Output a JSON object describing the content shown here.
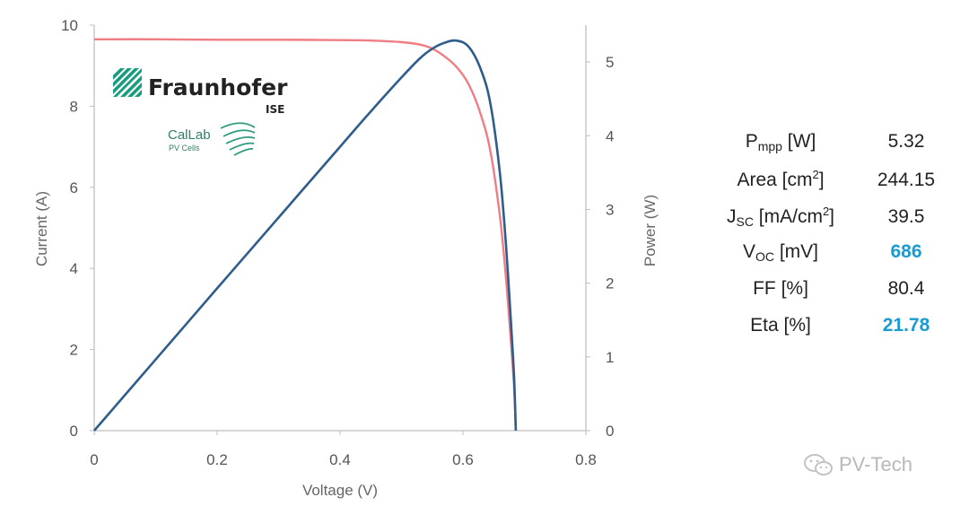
{
  "chart_data": {
    "type": "line",
    "xlabel": "Voltage (V)",
    "ylabel": "Current (A)",
    "y2label": "Power (W)",
    "xlim": [
      0,
      0.8
    ],
    "ylim": [
      0,
      10
    ],
    "y2lim": [
      0,
      5.5
    ],
    "x_ticks": [
      "0",
      "0.2",
      "0.4",
      "0.6",
      "0.8"
    ],
    "y_ticks": [
      "0",
      "2",
      "4",
      "6",
      "8",
      "10"
    ],
    "y2_ticks": [
      "0",
      "1",
      "2",
      "3",
      "4",
      "5"
    ],
    "grid": false,
    "legend": "none",
    "series": [
      {
        "axis": "left",
        "color": "#f07c84",
        "x": [
          0,
          0.1,
          0.2,
          0.3,
          0.4,
          0.45,
          0.5,
          0.53,
          0.55,
          0.57,
          0.59,
          0.61,
          0.63,
          0.645,
          0.66,
          0.67,
          0.678,
          0.683,
          0.686
        ],
        "y": [
          9.65,
          9.65,
          9.64,
          9.64,
          9.63,
          9.62,
          9.58,
          9.52,
          9.42,
          9.23,
          8.96,
          8.52,
          7.75,
          6.86,
          5.3,
          3.75,
          2.2,
          1.1,
          0
        ]
      },
      {
        "axis": "right",
        "color": "#2e5d8c",
        "x": [
          0,
          0.1,
          0.2,
          0.3,
          0.4,
          0.45,
          0.5,
          0.53,
          0.55,
          0.57,
          0.59,
          0.61,
          0.63,
          0.645,
          0.66,
          0.67,
          0.678,
          0.683,
          0.686
        ],
        "y": [
          0,
          0.965,
          1.93,
          2.89,
          3.85,
          4.33,
          4.79,
          5.05,
          5.18,
          5.26,
          5.29,
          5.2,
          4.88,
          4.42,
          3.5,
          2.51,
          1.49,
          0.75,
          0
        ]
      }
    ]
  },
  "logo": {
    "name": "Fraunhofer",
    "suffix": "ISE",
    "lab": "CalLab",
    "lab_sub": "PV Cells",
    "color": "#179c7d"
  },
  "results": [
    {
      "label_main": "P",
      "label_sub": "mpp",
      "label_rest": " [W]",
      "value": "5.32",
      "highlight": false
    },
    {
      "label_main": "Area [cm",
      "label_sup": "2",
      "label_rest": "]",
      "value": "244.15",
      "highlight": false
    },
    {
      "label_main": "J",
      "label_sub": "SC",
      "label_rest": " [mA/cm",
      "label_sup2": "2",
      "label_rest2": "]",
      "value": "39.5",
      "highlight": false
    },
    {
      "label_main": "V",
      "label_sub": "OC",
      "label_rest": " [mV]",
      "value": "686",
      "highlight": true
    },
    {
      "label_main": "FF [%]",
      "value": "80.4",
      "highlight": false
    },
    {
      "label_main": "Eta [%]",
      "value": "21.78",
      "highlight": true
    }
  ],
  "watermark": {
    "text": "PV-Tech"
  },
  "colors": {
    "highlight": "#1a9bd1",
    "current_curve": "#f07c84",
    "power_curve": "#2e5d8c"
  }
}
